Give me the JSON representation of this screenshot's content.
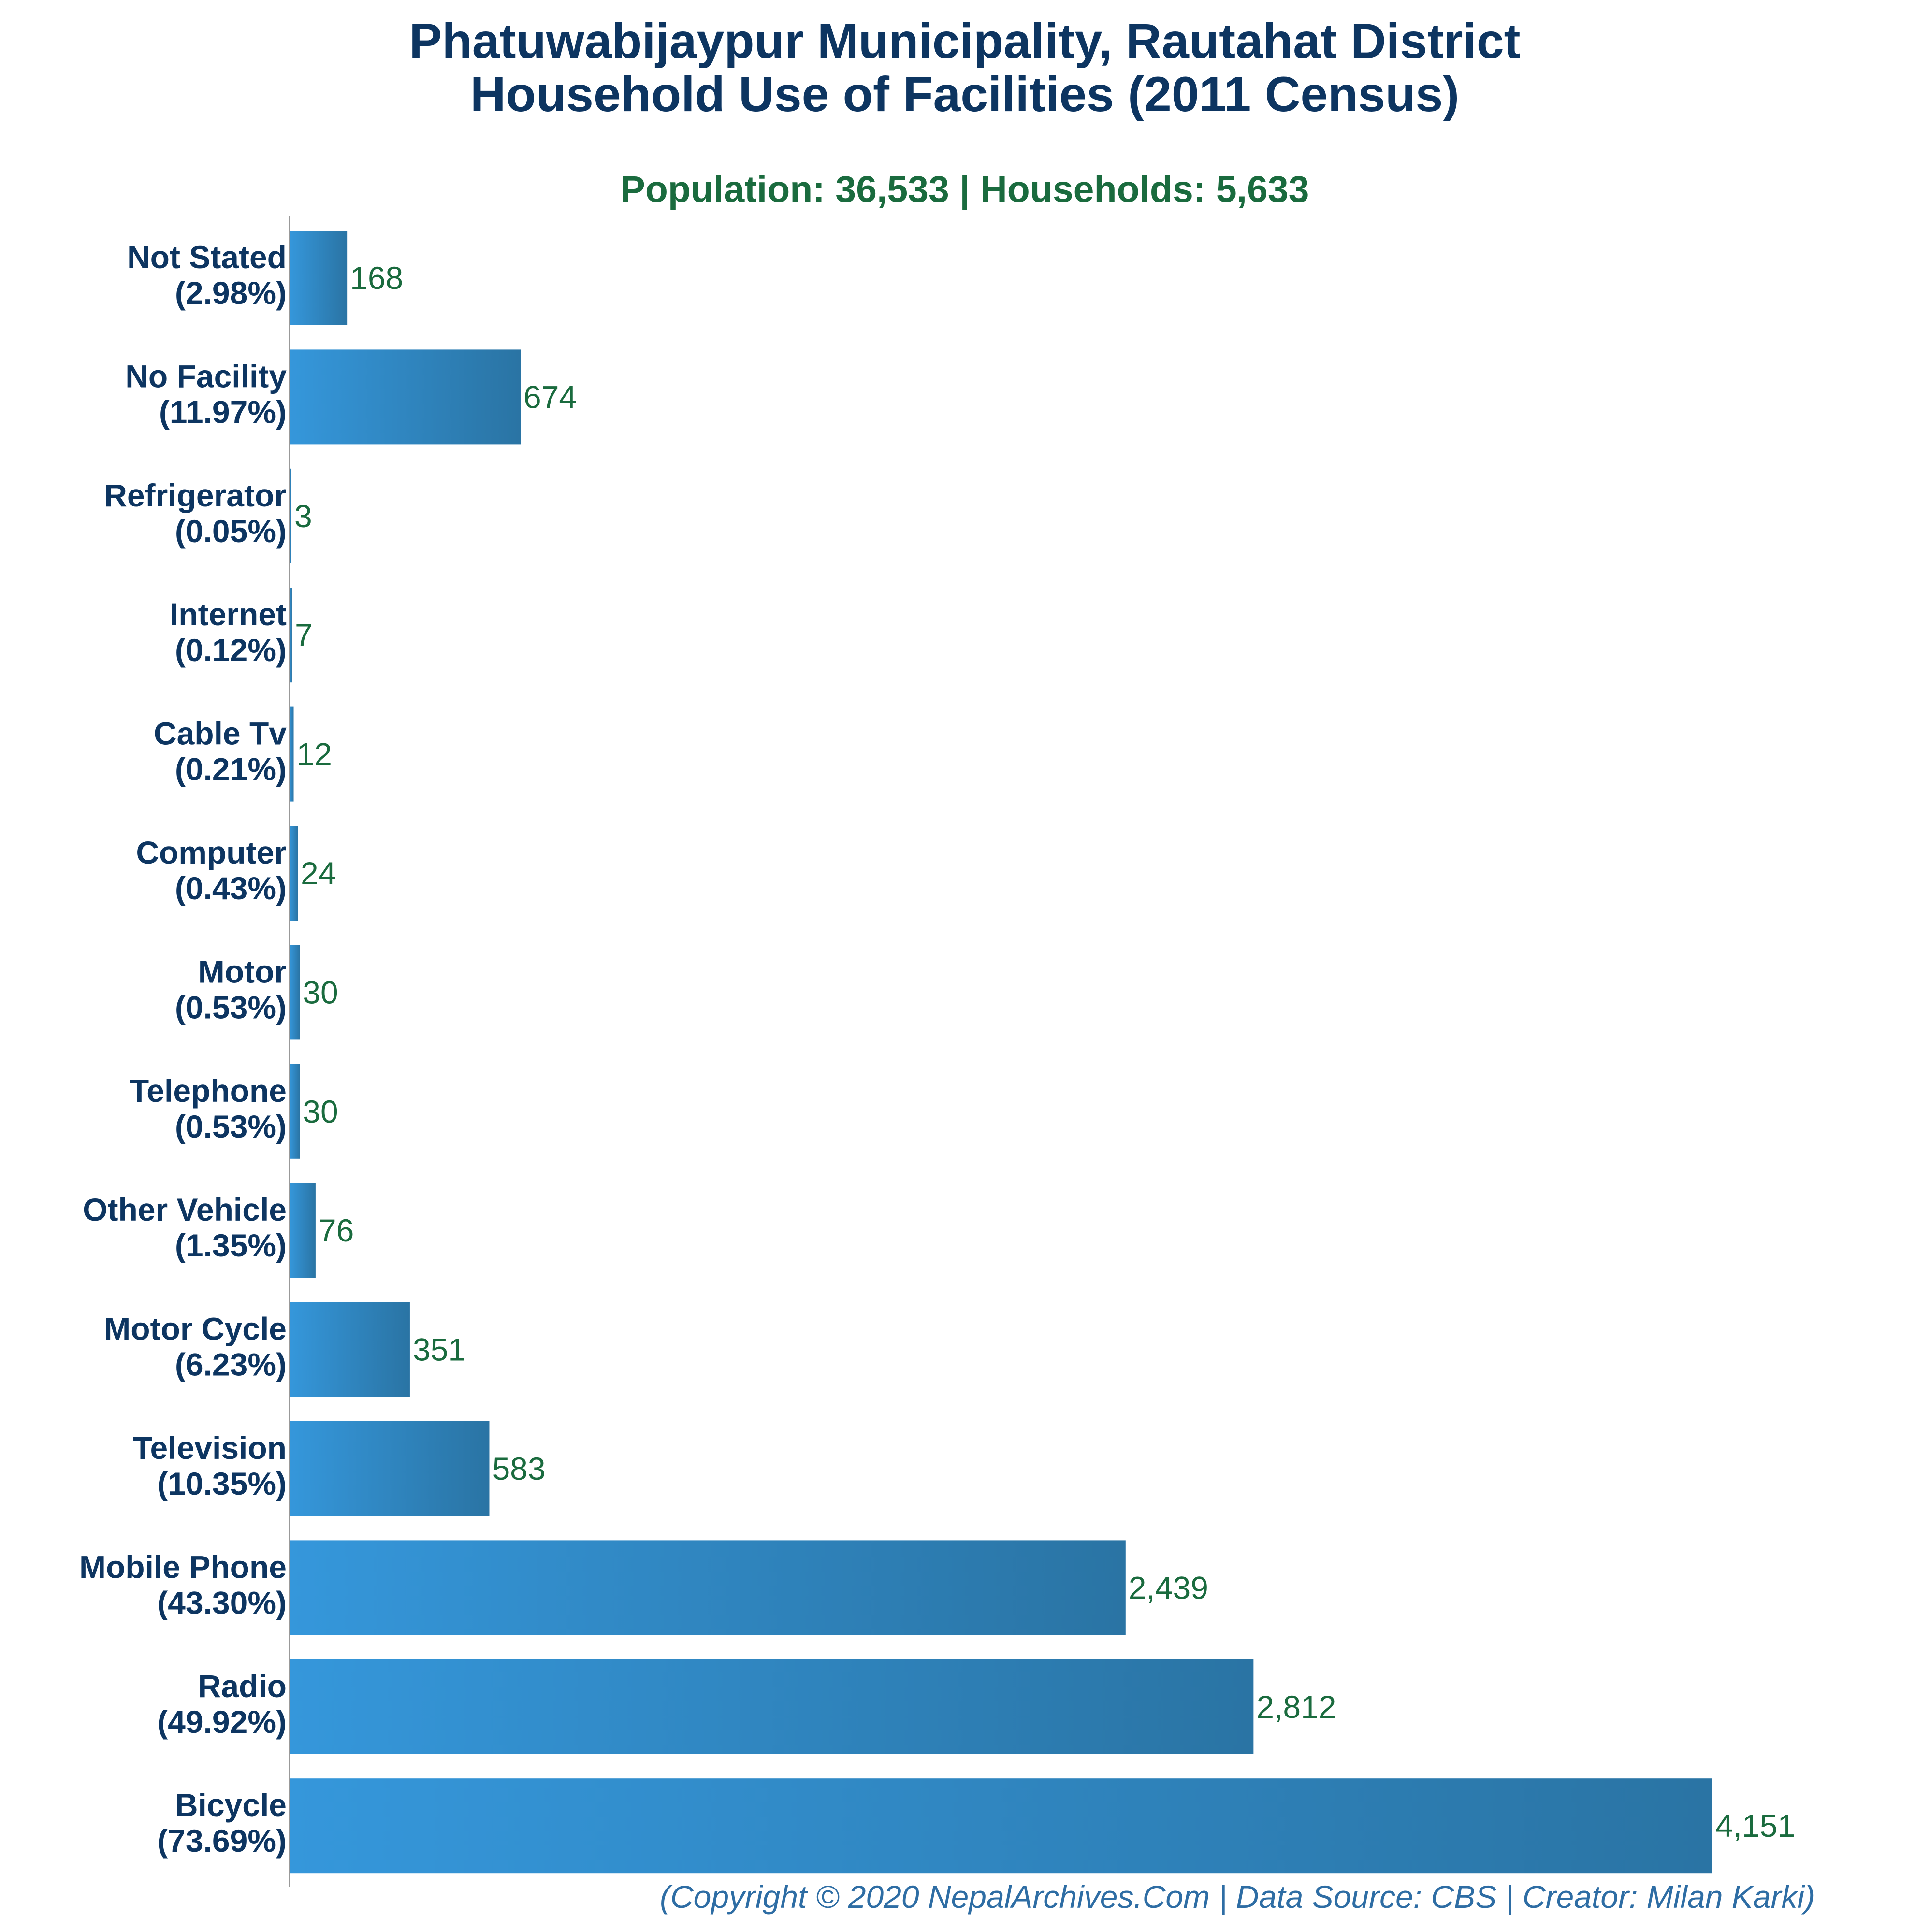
{
  "chart_data": {
    "type": "bar",
    "orientation": "horizontal",
    "title_line1": "Phatuwabijaypur Municipality, Rautahat District",
    "title_line2": "Household Use of Facilities (2011 Census)",
    "subtitle": "Population: 36,533 | Households: 5,633",
    "footer": "(Copyright © 2020 NepalArchives.Com | Data Source: CBS | Creator: Milan Karki)",
    "categories": [
      "Not Stated",
      "No Facility",
      "Refrigerator",
      "Internet",
      "Cable Tv",
      "Computer",
      "Motor",
      "Telephone",
      "Other Vehicle",
      "Motor Cycle",
      "Television",
      "Mobile Phone",
      "Radio",
      "Bicycle"
    ],
    "percent_labels": [
      "(2.98%)",
      "(11.97%)",
      "(0.05%)",
      "(0.12%)",
      "(0.21%)",
      "(0.43%)",
      "(0.53%)",
      "(0.53%)",
      "(1.35%)",
      "(6.23%)",
      "(10.35%)",
      "(43.30%)",
      "(49.92%)",
      "(73.69%)"
    ],
    "values": [
      168,
      674,
      3,
      7,
      12,
      24,
      30,
      30,
      76,
      351,
      583,
      2439,
      2812,
      4151
    ],
    "value_labels": [
      "168",
      "674",
      "3",
      "7",
      "12",
      "24",
      "30",
      "30",
      "76",
      "351",
      "583",
      "2,439",
      "2,812",
      "4,151"
    ],
    "xlim": [
      0,
      4151
    ],
    "grid": false,
    "legend": "none",
    "colors": {
      "title": "#0d3561",
      "subtitle": "#1a6b3e",
      "category_label": "#0d3561",
      "value_label": "#1a6b3e",
      "footer": "#2e6da4",
      "bar_start": "#3597db",
      "bar_end": "#2a74a4",
      "axis": "#999999"
    }
  }
}
